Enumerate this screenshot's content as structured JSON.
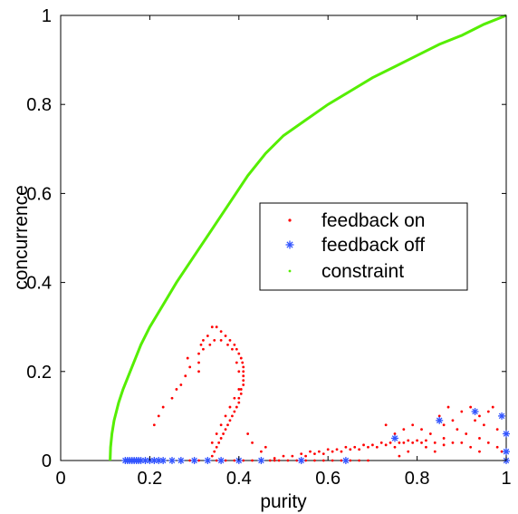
{
  "chart_data": {
    "type": "scatter",
    "title": "",
    "xlabel": "purity",
    "ylabel": "concurrence",
    "xlim": [
      0,
      1
    ],
    "ylim": [
      0,
      1
    ],
    "xticks": [
      "0",
      "0.2",
      "0.4",
      "0.6",
      "0.8",
      "1"
    ],
    "yticks": [
      "0",
      "0.2",
      "0.4",
      "0.6",
      "0.8",
      "1"
    ],
    "xtick_values": [
      0,
      0.2,
      0.4,
      0.6,
      0.8,
      1
    ],
    "ytick_values": [
      0,
      0.2,
      0.4,
      0.6,
      0.8,
      1
    ],
    "grid": false,
    "legend_position": "center-right",
    "series": [
      {
        "name": "feedback on",
        "marker": "dot",
        "color": "#ff0000",
        "points": [
          [
            0.33,
            0.0
          ],
          [
            0.34,
            0.01
          ],
          [
            0.345,
            0.02
          ],
          [
            0.35,
            0.03
          ],
          [
            0.355,
            0.04
          ],
          [
            0.36,
            0.05
          ],
          [
            0.365,
            0.06
          ],
          [
            0.37,
            0.07
          ],
          [
            0.375,
            0.08
          ],
          [
            0.38,
            0.09
          ],
          [
            0.385,
            0.1
          ],
          [
            0.39,
            0.11
          ],
          [
            0.395,
            0.12
          ],
          [
            0.4,
            0.13
          ],
          [
            0.4,
            0.14
          ],
          [
            0.405,
            0.15
          ],
          [
            0.405,
            0.16
          ],
          [
            0.41,
            0.17
          ],
          [
            0.41,
            0.18
          ],
          [
            0.41,
            0.19
          ],
          [
            0.41,
            0.2
          ],
          [
            0.41,
            0.21
          ],
          [
            0.408,
            0.22
          ],
          [
            0.405,
            0.23
          ],
          [
            0.4,
            0.24
          ],
          [
            0.395,
            0.25
          ],
          [
            0.39,
            0.26
          ],
          [
            0.38,
            0.27
          ],
          [
            0.37,
            0.28
          ],
          [
            0.36,
            0.29
          ],
          [
            0.35,
            0.3
          ],
          [
            0.34,
            0.04
          ],
          [
            0.35,
            0.06
          ],
          [
            0.36,
            0.08
          ],
          [
            0.37,
            0.1
          ],
          [
            0.38,
            0.12
          ],
          [
            0.39,
            0.14
          ],
          [
            0.4,
            0.16
          ],
          [
            0.4,
            0.2
          ],
          [
            0.395,
            0.22
          ],
          [
            0.34,
            0.3
          ],
          [
            0.33,
            0.28
          ],
          [
            0.32,
            0.27
          ],
          [
            0.315,
            0.26
          ],
          [
            0.31,
            0.24
          ],
          [
            0.31,
            0.22
          ],
          [
            0.31,
            0.2
          ],
          [
            0.29,
            0.21
          ],
          [
            0.285,
            0.23
          ],
          [
            0.28,
            0.19
          ],
          [
            0.27,
            0.17
          ],
          [
            0.26,
            0.16
          ],
          [
            0.25,
            0.14
          ],
          [
            0.22,
            0.1
          ],
          [
            0.21,
            0.08
          ],
          [
            0.23,
            0.12
          ],
          [
            0.32,
            0.25
          ],
          [
            0.335,
            0.26
          ],
          [
            0.345,
            0.27
          ],
          [
            0.36,
            0.27
          ],
          [
            0.375,
            0.26
          ],
          [
            0.385,
            0.25
          ],
          [
            0.15,
            0.0
          ],
          [
            0.17,
            0.0
          ],
          [
            0.19,
            0.0
          ],
          [
            0.21,
            0.0
          ],
          [
            0.23,
            0.0
          ],
          [
            0.25,
            0.0
          ],
          [
            0.27,
            0.0
          ],
          [
            0.29,
            0.0
          ],
          [
            0.31,
            0.0
          ],
          [
            0.33,
            0.0
          ],
          [
            0.35,
            0.0
          ],
          [
            0.37,
            0.0
          ],
          [
            0.39,
            0.0
          ],
          [
            0.41,
            0.0
          ],
          [
            0.43,
            0.0
          ],
          [
            0.45,
            0.0
          ],
          [
            0.47,
            0.0
          ],
          [
            0.49,
            0.0
          ],
          [
            0.51,
            0.0
          ],
          [
            0.53,
            0.0
          ],
          [
            0.55,
            0.0
          ],
          [
            0.57,
            0.0
          ],
          [
            0.59,
            0.0
          ],
          [
            0.61,
            0.0
          ],
          [
            0.63,
            0.0
          ],
          [
            0.65,
            0.0
          ],
          [
            0.67,
            0.0
          ],
          [
            0.69,
            0.0
          ],
          [
            0.42,
            0.06
          ],
          [
            0.43,
            0.04
          ],
          [
            0.45,
            0.02
          ],
          [
            0.46,
            0.03
          ],
          [
            0.48,
            0.0
          ],
          [
            0.48,
            0.005
          ],
          [
            0.5,
            0.01
          ],
          [
            0.52,
            0.01
          ],
          [
            0.54,
            0.015
          ],
          [
            0.56,
            0.02
          ],
          [
            0.58,
            0.02
          ],
          [
            0.6,
            0.025
          ],
          [
            0.62,
            0.025
          ],
          [
            0.64,
            0.03
          ],
          [
            0.66,
            0.03
          ],
          [
            0.68,
            0.035
          ],
          [
            0.7,
            0.035
          ],
          [
            0.72,
            0.04
          ],
          [
            0.74,
            0.04
          ],
          [
            0.76,
            0.04
          ],
          [
            0.78,
            0.045
          ],
          [
            0.8,
            0.045
          ],
          [
            0.82,
            0.045
          ],
          [
            0.84,
            0.04
          ],
          [
            0.86,
            0.035
          ],
          [
            0.55,
            0.01
          ],
          [
            0.57,
            0.015
          ],
          [
            0.59,
            0.015
          ],
          [
            0.61,
            0.02
          ],
          [
            0.63,
            0.02
          ],
          [
            0.65,
            0.025
          ],
          [
            0.67,
            0.025
          ],
          [
            0.69,
            0.03
          ],
          [
            0.71,
            0.03
          ],
          [
            0.73,
            0.035
          ],
          [
            0.75,
            0.03
          ],
          [
            0.77,
            0.04
          ],
          [
            0.79,
            0.04
          ],
          [
            0.81,
            0.04
          ],
          [
            0.73,
            0.08
          ],
          [
            0.75,
            0.06
          ],
          [
            0.77,
            0.07
          ],
          [
            0.79,
            0.08
          ],
          [
            0.81,
            0.07
          ],
          [
            0.83,
            0.06
          ],
          [
            0.85,
            0.1
          ],
          [
            0.86,
            0.08
          ],
          [
            0.87,
            0.12
          ],
          [
            0.88,
            0.09
          ],
          [
            0.89,
            0.07
          ],
          [
            0.9,
            0.11
          ],
          [
            0.91,
            0.06
          ],
          [
            0.92,
            0.12
          ],
          [
            0.93,
            0.09
          ],
          [
            0.94,
            0.05
          ],
          [
            0.95,
            0.08
          ],
          [
            0.96,
            0.04
          ],
          [
            0.97,
            0.12
          ],
          [
            0.98,
            0.03
          ],
          [
            0.99,
            0.02
          ],
          [
            0.86,
            0.05
          ],
          [
            0.88,
            0.04
          ],
          [
            0.9,
            0.04
          ],
          [
            0.92,
            0.03
          ],
          [
            0.94,
            0.02
          ],
          [
            0.84,
            0.02
          ],
          [
            0.82,
            0.03
          ],
          [
            0.78,
            0.02
          ],
          [
            0.76,
            0.01
          ],
          [
            0.98,
            0.07
          ],
          [
            0.96,
            0.11
          ],
          [
            0.94,
            0.1
          ]
        ]
      },
      {
        "name": "feedback off",
        "marker": "asterisk",
        "color": "#3355ff",
        "points": [
          [
            0.145,
            0.0
          ],
          [
            0.15,
            0.0
          ],
          [
            0.155,
            0.0
          ],
          [
            0.16,
            0.0
          ],
          [
            0.165,
            0.0
          ],
          [
            0.17,
            0.0
          ],
          [
            0.175,
            0.0
          ],
          [
            0.18,
            0.0
          ],
          [
            0.19,
            0.0
          ],
          [
            0.2,
            0.0
          ],
          [
            0.21,
            0.0
          ],
          [
            0.22,
            0.0
          ],
          [
            0.23,
            0.0
          ],
          [
            0.25,
            0.0
          ],
          [
            0.27,
            0.0
          ],
          [
            0.3,
            0.0
          ],
          [
            0.33,
            0.0
          ],
          [
            0.36,
            0.0
          ],
          [
            0.4,
            0.0
          ],
          [
            0.45,
            0.0
          ],
          [
            0.54,
            0.0
          ],
          [
            0.64,
            0.0
          ],
          [
            0.75,
            0.05
          ],
          [
            0.85,
            0.09
          ],
          [
            0.93,
            0.11
          ],
          [
            0.99,
            0.1
          ],
          [
            1.0,
            0.06
          ],
          [
            1.0,
            0.02
          ],
          [
            1.0,
            0.0
          ]
        ]
      },
      {
        "name": "constraint",
        "marker": "line",
        "color": "#55ee00",
        "points": [
          [
            0.111,
            0.0
          ],
          [
            0.112,
            0.03
          ],
          [
            0.115,
            0.06
          ],
          [
            0.12,
            0.09
          ],
          [
            0.13,
            0.13
          ],
          [
            0.14,
            0.16
          ],
          [
            0.16,
            0.21
          ],
          [
            0.18,
            0.26
          ],
          [
            0.2,
            0.3
          ],
          [
            0.23,
            0.35
          ],
          [
            0.26,
            0.4
          ],
          [
            0.3,
            0.46
          ],
          [
            0.34,
            0.52
          ],
          [
            0.38,
            0.58
          ],
          [
            0.42,
            0.64
          ],
          [
            0.46,
            0.69
          ],
          [
            0.5,
            0.73
          ],
          [
            0.55,
            0.765
          ],
          [
            0.6,
            0.8
          ],
          [
            0.65,
            0.83
          ],
          [
            0.7,
            0.86
          ],
          [
            0.75,
            0.885
          ],
          [
            0.8,
            0.91
          ],
          [
            0.85,
            0.935
          ],
          [
            0.9,
            0.955
          ],
          [
            0.95,
            0.98
          ],
          [
            1.0,
            1.0
          ]
        ]
      }
    ]
  }
}
